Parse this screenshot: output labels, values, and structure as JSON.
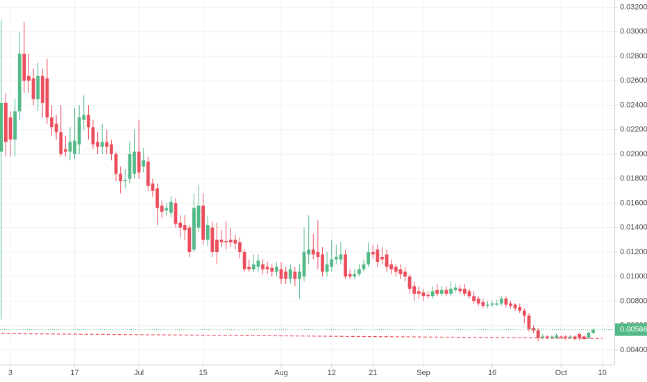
{
  "chart_data": {
    "type": "candlestick",
    "x": [
      "06-01",
      "06-02",
      "06-03",
      "06-04",
      "06-05",
      "06-06",
      "06-07",
      "06-08",
      "06-09",
      "06-10",
      "06-11",
      "06-12",
      "06-13",
      "06-14",
      "06-15",
      "06-16",
      "06-17",
      "06-18",
      "06-19",
      "06-20",
      "06-21",
      "06-22",
      "06-23",
      "06-24",
      "06-25",
      "06-26",
      "06-27",
      "06-28",
      "06-29",
      "06-30",
      "07-01",
      "07-02",
      "07-03",
      "07-04",
      "07-05",
      "07-06",
      "07-07",
      "07-08",
      "07-09",
      "07-10",
      "07-11",
      "07-12",
      "07-13",
      "07-14",
      "07-15",
      "07-16",
      "07-17",
      "07-18",
      "07-19",
      "07-20",
      "07-21",
      "07-22",
      "07-23",
      "07-24",
      "07-25",
      "07-26",
      "07-27",
      "07-28",
      "07-29",
      "07-30",
      "07-31",
      "08-01",
      "08-02",
      "08-03",
      "08-04",
      "08-05",
      "08-06",
      "08-07",
      "08-08",
      "08-09",
      "08-10",
      "08-11",
      "08-12",
      "08-13",
      "08-14",
      "08-15",
      "08-16",
      "08-17",
      "08-18",
      "08-19",
      "08-20",
      "08-21",
      "08-22",
      "08-23",
      "08-24",
      "08-25",
      "08-26",
      "08-27",
      "08-28",
      "08-29",
      "08-30",
      "08-31",
      "09-01",
      "09-02",
      "09-03",
      "09-04",
      "09-05",
      "09-06",
      "09-07",
      "09-08",
      "09-09",
      "09-10",
      "09-11",
      "09-12",
      "09-13",
      "09-14",
      "09-15",
      "09-16",
      "09-17",
      "09-18",
      "09-19",
      "09-20",
      "09-21",
      "09-22",
      "09-23",
      "09-24",
      "09-25",
      "09-26",
      "09-27",
      "09-28",
      "09-29",
      "09-30",
      "10-01",
      "10-02",
      "10-03",
      "10-04",
      "10-05",
      "10-06",
      "10-07",
      "10-08"
    ],
    "open": [
      0.0202,
      0.0242,
      0.023,
      0.0212,
      0.0235,
      0.0282,
      0.0264,
      0.0262,
      0.0245,
      0.0264,
      0.0262,
      0.023,
      0.0225,
      0.0218,
      0.0204,
      0.0202,
      0.02,
      0.0208,
      0.0228,
      0.0232,
      0.0222,
      0.021,
      0.0206,
      0.021,
      0.0208,
      0.02,
      0.0184,
      0.0178,
      0.018,
      0.0184,
      0.0202,
      0.019,
      0.0194,
      0.0176,
      0.0172,
      0.0158,
      0.0154,
      0.0152,
      0.016,
      0.0144,
      0.0142,
      0.014,
      0.0122,
      0.014,
      0.0158,
      0.013,
      0.014,
      0.013,
      0.013,
      0.0129,
      0.013,
      0.013,
      0.0128,
      0.012,
      0.0108,
      0.0106,
      0.0108,
      0.011,
      0.0108,
      0.0107,
      0.0104,
      0.0106,
      0.0104,
      0.0098,
      0.0104,
      0.0098,
      0.01,
      0.0118,
      0.0122,
      0.012,
      0.0118,
      0.0104,
      0.0108,
      0.0114,
      0.0114,
      0.0118,
      0.0102,
      0.01,
      0.0102,
      0.0106,
      0.011,
      0.012,
      0.0122,
      0.0116,
      0.0118,
      0.011,
      0.0108,
      0.0106,
      0.0104,
      0.01,
      0.0092,
      0.0088,
      0.0087,
      0.0085,
      0.0084,
      0.0089,
      0.0086,
      0.0089,
      0.0086,
      0.0089,
      0.009,
      0.009,
      0.0088,
      0.0084,
      0.0082,
      0.0079,
      0.0076,
      0.0077,
      0.0077,
      0.0078,
      0.0082,
      0.0078,
      0.0077,
      0.0075,
      0.0072,
      0.0068,
      0.0058,
      0.0056,
      0.005,
      0.0051,
      0.005,
      0.005,
      0.0051,
      0.0051,
      0.005,
      0.0051,
      0.0053,
      0.0051,
      0.005,
      0.0054
    ],
    "high": [
      0.031,
      0.025,
      0.0235,
      0.0245,
      0.03,
      0.0308,
      0.0282,
      0.027,
      0.0275,
      0.027,
      0.0278,
      0.024,
      0.0232,
      0.024,
      0.0215,
      0.0222,
      0.0238,
      0.024,
      0.0248,
      0.024,
      0.0228,
      0.0218,
      0.0225,
      0.022,
      0.0212,
      0.0202,
      0.019,
      0.0188,
      0.021,
      0.022,
      0.0228,
      0.0205,
      0.0198,
      0.018,
      0.0176,
      0.0162,
      0.016,
      0.0166,
      0.0164,
      0.015,
      0.015,
      0.0142,
      0.0168,
      0.0175,
      0.0168,
      0.015,
      0.0145,
      0.0144,
      0.0138,
      0.0145,
      0.014,
      0.0134,
      0.0132,
      0.0122,
      0.0114,
      0.0118,
      0.0118,
      0.0114,
      0.0112,
      0.011,
      0.0112,
      0.0112,
      0.0108,
      0.011,
      0.0108,
      0.011,
      0.014,
      0.015,
      0.0135,
      0.0146,
      0.0124,
      0.012,
      0.013,
      0.0126,
      0.0128,
      0.0122,
      0.0106,
      0.0106,
      0.011,
      0.0114,
      0.0128,
      0.0126,
      0.0126,
      0.0124,
      0.0122,
      0.0114,
      0.011,
      0.011,
      0.0108,
      0.0102,
      0.0096,
      0.0092,
      0.009,
      0.0088,
      0.0092,
      0.0094,
      0.0092,
      0.0092,
      0.0096,
      0.0094,
      0.0093,
      0.0094,
      0.009,
      0.0088,
      0.0084,
      0.0082,
      0.008,
      0.008,
      0.0081,
      0.0084,
      0.0084,
      0.008,
      0.0078,
      0.0078,
      0.0074,
      0.007,
      0.006,
      0.0058,
      0.0053,
      0.0052,
      0.0052,
      0.0053,
      0.0052,
      0.0052,
      0.0052,
      0.0052,
      0.0054,
      0.0052,
      0.0055,
      0.0058
    ],
    "low": [
      0.0065,
      0.0198,
      0.0198,
      0.0198,
      0.0228,
      0.025,
      0.025,
      0.024,
      0.0235,
      0.023,
      0.0225,
      0.0215,
      0.0212,
      0.0198,
      0.0198,
      0.0195,
      0.0196,
      0.02,
      0.022,
      0.0212,
      0.0204,
      0.02,
      0.02,
      0.02,
      0.0195,
      0.0178,
      0.0168,
      0.0172,
      0.0176,
      0.018,
      0.018,
      0.0185,
      0.017,
      0.0165,
      0.0142,
      0.0148,
      0.015,
      0.0148,
      0.014,
      0.0132,
      0.013,
      0.0116,
      0.012,
      0.0136,
      0.0126,
      0.0125,
      0.0116,
      0.011,
      0.0124,
      0.0122,
      0.0124,
      0.0122,
      0.0115,
      0.0104,
      0.0104,
      0.0104,
      0.0104,
      0.0102,
      0.0102,
      0.01,
      0.01,
      0.0094,
      0.0094,
      0.0094,
      0.0092,
      0.0082,
      0.0096,
      0.011,
      0.0114,
      0.0106,
      0.01,
      0.01,
      0.0104,
      0.011,
      0.011,
      0.0098,
      0.0098,
      0.0098,
      0.01,
      0.0104,
      0.0108,
      0.0114,
      0.0108,
      0.011,
      0.0104,
      0.0102,
      0.01,
      0.0098,
      0.0096,
      0.0086,
      0.008,
      0.0082,
      0.008,
      0.0082,
      0.0082,
      0.0084,
      0.0084,
      0.0084,
      0.0084,
      0.0087,
      0.0086,
      0.0084,
      0.0082,
      0.0078,
      0.0076,
      0.0074,
      0.0074,
      0.0075,
      0.0076,
      0.0076,
      0.0075,
      0.0074,
      0.0072,
      0.007,
      0.0062,
      0.0055,
      0.0054,
      0.0047,
      0.0049,
      0.0049,
      0.0049,
      0.0049,
      0.0049,
      0.0048,
      0.0049,
      0.0048,
      0.0048,
      0.0048,
      0.0049,
      0.0053
    ],
    "close": [
      0.0242,
      0.021,
      0.0212,
      0.0235,
      0.0282,
      0.026,
      0.026,
      0.0245,
      0.0264,
      0.0242,
      0.023,
      0.0222,
      0.0218,
      0.02,
      0.0202,
      0.021,
      0.0211,
      0.023,
      0.0232,
      0.0222,
      0.0208,
      0.0206,
      0.021,
      0.0206,
      0.02,
      0.0184,
      0.0178,
      0.0179,
      0.02,
      0.0202,
      0.0185,
      0.0195,
      0.0174,
      0.017,
      0.0156,
      0.0153,
      0.0156,
      0.0161,
      0.0143,
      0.014,
      0.0138,
      0.012,
      0.0156,
      0.0158,
      0.013,
      0.0142,
      0.012,
      0.012,
      0.0128,
      0.0128,
      0.0128,
      0.0127,
      0.012,
      0.0106,
      0.0106,
      0.011,
      0.0113,
      0.0106,
      0.0106,
      0.0104,
      0.0108,
      0.0098,
      0.0098,
      0.0106,
      0.0098,
      0.0104,
      0.012,
      0.0122,
      0.0118,
      0.0116,
      0.0104,
      0.011,
      0.0114,
      0.0116,
      0.0118,
      0.01,
      0.01,
      0.0102,
      0.0106,
      0.011,
      0.012,
      0.0118,
      0.0112,
      0.0114,
      0.0108,
      0.0106,
      0.0104,
      0.0102,
      0.01,
      0.009,
      0.0086,
      0.0086,
      0.0084,
      0.0084,
      0.0088,
      0.0086,
      0.0089,
      0.0086,
      0.009,
      0.0091,
      0.0088,
      0.0086,
      0.0084,
      0.008,
      0.0078,
      0.0076,
      0.0077,
      0.0078,
      0.0078,
      0.0082,
      0.0077,
      0.0076,
      0.0074,
      0.0072,
      0.0068,
      0.0057,
      0.0056,
      0.005,
      0.0051,
      0.005,
      0.0051,
      0.0052,
      0.005,
      0.005,
      0.0051,
      0.0049,
      0.005,
      0.0049,
      0.0054,
      0.00566
    ],
    "up_color": "#53b987",
    "down_color": "#eb4d5c",
    "ylim": [
      0.0028,
      0.0326
    ],
    "yticks": [
      {
        "value": 0.004,
        "label": "0.00400"
      },
      {
        "value": 0.006,
        "label": "0.00600"
      },
      {
        "value": 0.008,
        "label": "0.00800"
      },
      {
        "value": 0.01,
        "label": "0.01000"
      },
      {
        "value": 0.012,
        "label": "0.01200"
      },
      {
        "value": 0.014,
        "label": "0.01400"
      },
      {
        "value": 0.016,
        "label": "0.01600"
      },
      {
        "value": 0.018,
        "label": "0.01800"
      },
      {
        "value": 0.02,
        "label": "0.02000"
      },
      {
        "value": 0.022,
        "label": "0.02200"
      },
      {
        "value": 0.024,
        "label": "0.02400"
      },
      {
        "value": 0.026,
        "label": "0.02600"
      },
      {
        "value": 0.028,
        "label": "0.02800"
      },
      {
        "value": 0.03,
        "label": "0.03000"
      },
      {
        "value": 0.032,
        "label": "0.03200"
      }
    ],
    "xticks": [
      {
        "value": "06-03",
        "label": "3"
      },
      {
        "value": "06-17",
        "label": "17"
      },
      {
        "value": "07-01",
        "label": "Jul"
      },
      {
        "value": "07-15",
        "label": "15"
      },
      {
        "value": "08-01",
        "label": "Aug"
      },
      {
        "value": "08-12",
        "label": "12"
      },
      {
        "value": "08-21",
        "label": "21"
      },
      {
        "value": "09-01",
        "label": "Sep"
      },
      {
        "value": "09-16",
        "label": "16"
      },
      {
        "value": "10-01",
        "label": "Oct"
      },
      {
        "value": "10-10",
        "label": "10"
      }
    ],
    "grid": true,
    "last_price": 0.00566,
    "trend_line": {
      "x": [
        "06-01",
        "10-10"
      ],
      "values": [
        0.00534,
        0.00494
      ],
      "color": "#eb4d5c"
    }
  }
}
